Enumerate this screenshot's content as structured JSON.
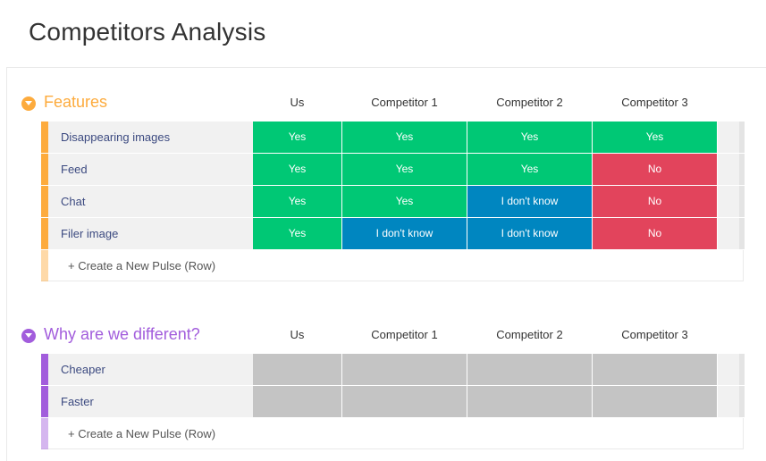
{
  "page": {
    "title": "Competitors Analysis"
  },
  "columns": [
    "Us",
    "Competitor 1",
    "Competitor 2",
    "Competitor 3"
  ],
  "colors": {
    "yes": "#00c875",
    "no": "#e2445c",
    "unknown": "#0086c0",
    "empty": "#c4c4c4"
  },
  "groups": [
    {
      "title": "Features",
      "color": "#fdab3d",
      "rows": [
        {
          "name": "Disappearing images",
          "cells": [
            "Yes",
            "Yes",
            "Yes",
            "Yes"
          ]
        },
        {
          "name": "Feed",
          "cells": [
            "Yes",
            "Yes",
            "Yes",
            "No"
          ]
        },
        {
          "name": "Chat",
          "cells": [
            "Yes",
            "Yes",
            "I don't know",
            "No"
          ]
        },
        {
          "name": "Filer image",
          "cells": [
            "Yes",
            "I don't know",
            "I don't know",
            "No"
          ]
        }
      ],
      "create_label": "+ Create a New Pulse (Row)"
    },
    {
      "title": "Why are we different?",
      "color": "#a25ddc",
      "rows": [
        {
          "name": "Cheaper",
          "cells": [
            "",
            "",
            "",
            ""
          ]
        },
        {
          "name": "Faster",
          "cells": [
            "",
            "",
            "",
            ""
          ]
        }
      ],
      "create_label": "+ Create a New Pulse (Row)"
    }
  ]
}
